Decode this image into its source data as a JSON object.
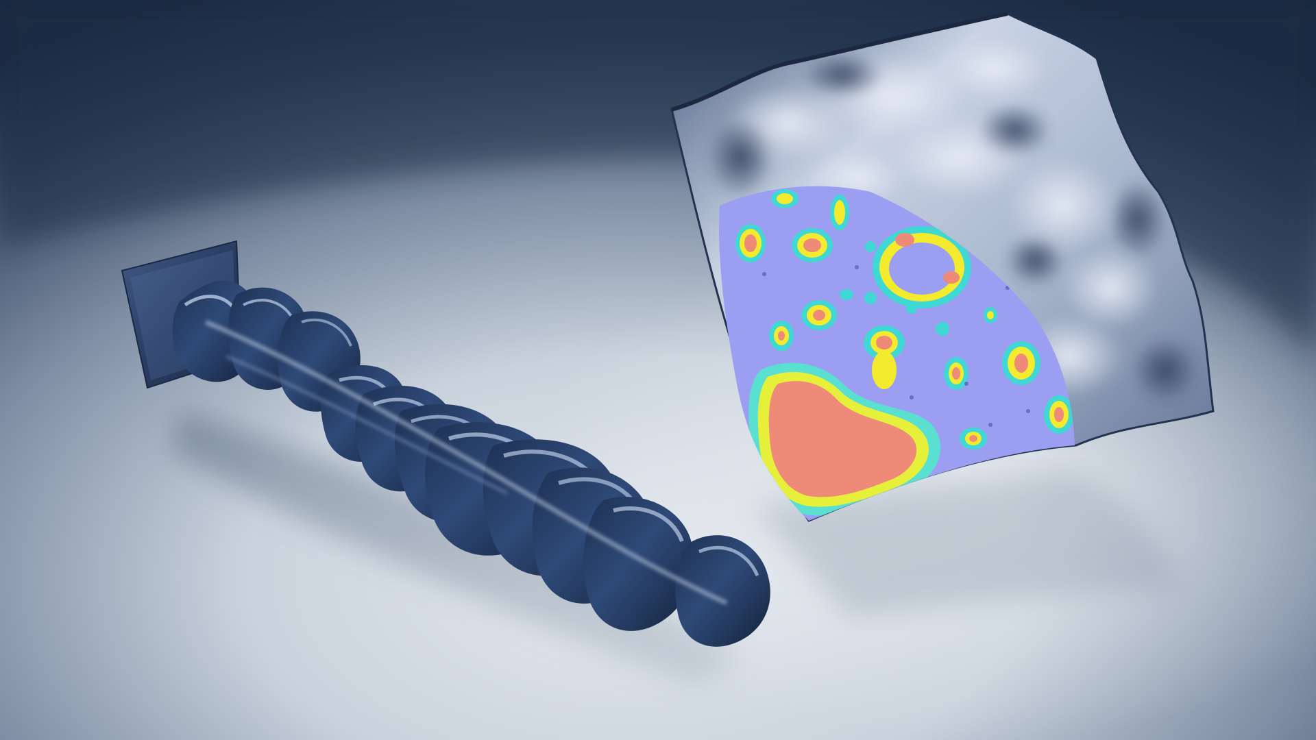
{
  "scene": {
    "subject": "render",
    "colors": {
      "background_dark": "#1b2a42",
      "background_light": "#dfe5ea",
      "ribbon_dark": "#0f1c33",
      "ribbon_mid": "#2a4470",
      "ribbon_light": "#9fb6d6",
      "sheet_light": "#d3dceb",
      "sheet_dark": "#3b4c6c",
      "heatmap_base": "#9a9cf0",
      "heatmap_cyan": "#2fe0dc",
      "heatmap_green": "#55e35a",
      "heatmap_yellow": "#f7ef2a",
      "heatmap_red": "#f07a70"
    }
  }
}
